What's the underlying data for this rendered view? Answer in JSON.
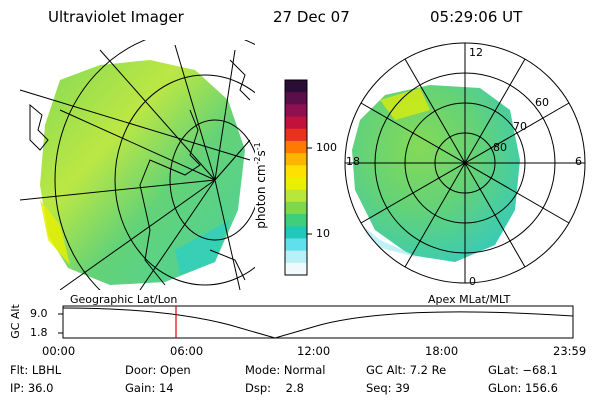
{
  "header": {
    "title": "Ultraviolet Imager",
    "date": "27 Dec 07",
    "time": "05:29:06 UT"
  },
  "colorbar": {
    "label": "photon cm",
    "label_exp1": "-2",
    "label_mid": "s",
    "label_exp2": "-1",
    "ticks": [
      "100",
      "10"
    ],
    "colors_top_to_bottom": [
      "#2a0d35",
      "#5b0f4a",
      "#8e1050",
      "#c0123c",
      "#e8321e",
      "#ff7a00",
      "#ffb400",
      "#ffe000",
      "#e8f000",
      "#b8e63a",
      "#7ed84e",
      "#3fcf7a",
      "#20c8b8",
      "#60e0ec",
      "#b8f0f6",
      "#f0fafc"
    ]
  },
  "polar": {
    "top_label": "12",
    "bottom_label": "0",
    "left_label": "18",
    "right_label": "6",
    "lat_labels": [
      "60",
      "70",
      "80"
    ]
  },
  "panel_labels": {
    "left": "Geographic Lat/Lon",
    "right": "Apex MLat/MLT"
  },
  "timeline": {
    "ylabel": "GC Alt",
    "y_ticks": [
      "9.0",
      "1.8"
    ],
    "x_ticks": [
      "00:00",
      "06:00",
      "12:00",
      "18:00",
      "23:59"
    ],
    "marker_color": "#e00000"
  },
  "info": {
    "flt": "Flt: LBHL",
    "ip": "IP: 36.0",
    "door": "Door: Open",
    "gain": "Gain: 14",
    "mode": "Mode: Normal",
    "dsp": "Dsp:    2.8",
    "gc_alt": "GC Alt: 7.2 Re",
    "seq": "Seq: 39",
    "glat": "GLat: −68.1",
    "glon": "GLon: 156.6"
  }
}
